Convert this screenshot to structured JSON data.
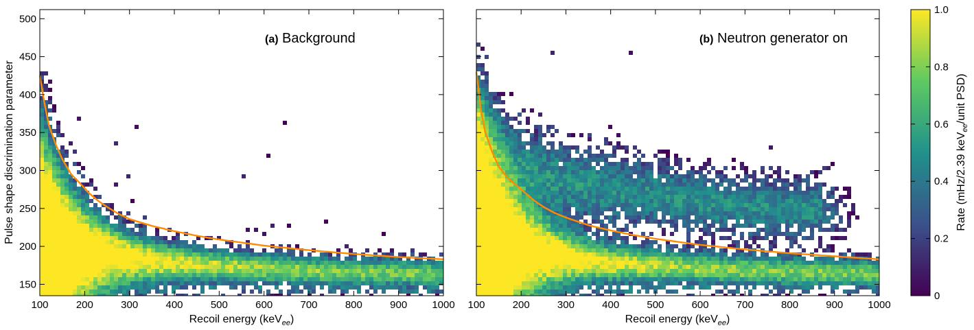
{
  "chart_data": [
    {
      "type": "heatmap",
      "panel_label": "(a)",
      "title": "Background",
      "xlabel": "Recoil energy (keV",
      "xlabel_sub": "ee",
      "xlabel_close": ")",
      "ylabel": "Pulse shape discrimination parameter",
      "xlim": [
        100,
        1000
      ],
      "ylim": [
        135,
        512
      ],
      "x_ticks": [
        100,
        200,
        300,
        400,
        500,
        600,
        700,
        800,
        900,
        1000
      ],
      "y_ticks": [
        150,
        200,
        250,
        300,
        350,
        400,
        450,
        500
      ],
      "curve_color": "#ff8c00",
      "cut_curve": {
        "x": [
          100,
          110,
          120,
          135,
          150,
          170,
          190,
          210,
          230,
          250,
          275,
          300,
          350,
          400,
          450,
          500,
          600,
          700,
          800,
          900,
          1000
        ],
        "y": [
          425,
          390,
          360,
          335,
          315,
          295,
          283,
          270,
          260,
          252,
          243,
          236,
          227,
          220,
          214,
          209,
          201,
          195,
          190,
          186,
          183
        ]
      },
      "bands": [
        {
          "name": "electron-recoil",
          "center": {
            "x": [
              100,
              150,
              200,
              300,
              400,
              500,
              600,
              700,
              800,
              900,
              1000
            ],
            "y": [
              215,
              205,
              195,
              185,
              178,
              174,
              171,
              168,
              166,
              165,
              164
            ]
          },
          "intensity": 1.0
        }
      ]
    },
    {
      "type": "heatmap",
      "panel_label": "(b)",
      "title": "Neutron generator on",
      "xlabel": "Recoil energy (keV",
      "xlabel_sub": "ee",
      "xlabel_close": ")",
      "xlim": [
        100,
        1000
      ],
      "ylim": [
        135,
        512
      ],
      "x_ticks": [
        100,
        200,
        300,
        400,
        500,
        600,
        700,
        800,
        900,
        1000
      ],
      "curve_color": "#ff8c00",
      "cut_curve": {
        "x": [
          100,
          110,
          120,
          135,
          150,
          170,
          190,
          210,
          230,
          250,
          275,
          300,
          350,
          400,
          450,
          500,
          600,
          700,
          800,
          900,
          1000
        ],
        "y": [
          430,
          380,
          350,
          325,
          305,
          290,
          280,
          270,
          260,
          252,
          244,
          238,
          228,
          221,
          215,
          210,
          202,
          196,
          191,
          187,
          183
        ]
      },
      "bands": [
        {
          "name": "electron-recoil",
          "center": {
            "x": [
              100,
              150,
              200,
              300,
              400,
              500,
              600,
              700,
              800,
              900,
              1000
            ],
            "y": [
              215,
              205,
              195,
              185,
              178,
              174,
              171,
              168,
              166,
              165,
              164
            ]
          },
          "intensity": 1.0
        },
        {
          "name": "nuclear-recoil",
          "center": {
            "x": [
              100,
              150,
              200,
              300,
              400,
              500,
              600,
              700,
              800
            ],
            "y": [
              360,
              320,
              300,
              285,
              275,
              268,
              260,
              252,
              248
            ]
          },
          "intensity": 0.35
        }
      ]
    }
  ],
  "colorbar": {
    "label": "Rate (mHz/2.39 keV",
    "label_sub": "ee",
    "label_close": "/unit PSD)",
    "range": [
      0,
      1.0
    ],
    "ticks": [
      "0",
      "0.2",
      "0.4",
      "0.6",
      "0.8",
      "1.0"
    ],
    "colormap": [
      "#440154",
      "#3b528b",
      "#21918c",
      "#5ec962",
      "#fde725"
    ]
  }
}
